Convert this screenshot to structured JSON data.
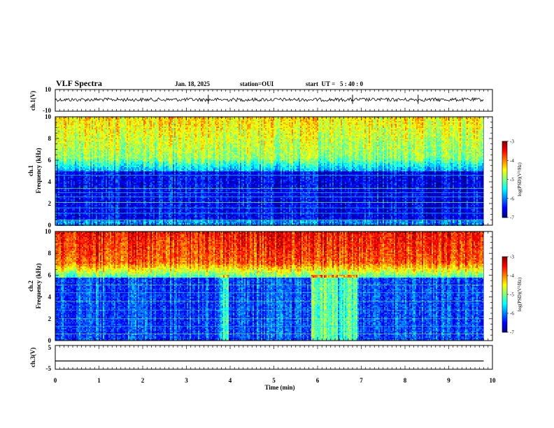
{
  "header": {
    "title": "VLF Spectra",
    "date": "Jan. 18, 2025",
    "station": "station=OUI",
    "start": "start  UT =   5 : 40 : 0"
  },
  "chart_data": [
    {
      "type": "line",
      "panel": "ch1-waveform",
      "ylabel": "ch.1(V)",
      "ylim": [
        -10,
        10
      ],
      "yticks": [
        "10",
        "-10"
      ],
      "baseline": 0
    },
    {
      "type": "heatmap",
      "panel": "ch1-spectrogram",
      "ylabel": "ch.1\nFrequency  (kHz)",
      "ylabel_lines": [
        "ch.1",
        "Frequency  (kHz)"
      ],
      "ylim": [
        0,
        10
      ],
      "yticks": [
        "0",
        "2",
        "4",
        "6",
        "8",
        "10"
      ],
      "colorbar": {
        "label": "log(PSD)(V²/Hz)",
        "range": [
          -7,
          -3
        ],
        "ticks": [
          "-3",
          "-4",
          "-5",
          "-6",
          "-7"
        ]
      }
    },
    {
      "type": "heatmap",
      "panel": "ch2-spectrogram",
      "ylabel_lines": [
        "ch.2",
        "Frequency  (kHz)"
      ],
      "ylim": [
        0,
        10
      ],
      "yticks": [
        "0",
        "2",
        "4",
        "6",
        "8",
        "10"
      ],
      "colorbar": {
        "label": "log(PSD)(V²/Hz)",
        "range": [
          -7,
          -3
        ],
        "ticks": [
          "-3",
          "-4",
          "-5",
          "-6",
          "-7"
        ]
      }
    },
    {
      "type": "line",
      "panel": "ch3-waveform",
      "ylabel": "ch.3(V)",
      "ylim": [
        -5,
        5
      ],
      "yticks": [
        "5",
        "-5"
      ],
      "baseline": -1.5
    }
  ],
  "xaxis": {
    "label": "Time  (min)",
    "range": [
      0,
      10
    ],
    "ticks": [
      "0",
      "1",
      "2",
      "3",
      "4",
      "5",
      "6",
      "7",
      "8",
      "9",
      "10"
    ],
    "data_end": 9.8
  }
}
